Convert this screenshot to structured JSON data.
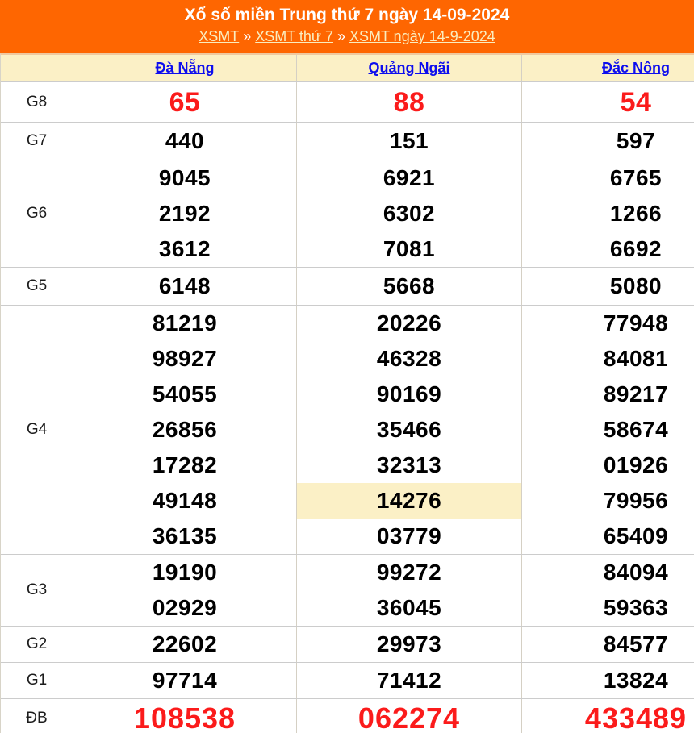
{
  "banner": {
    "title": "Xổ số miền Trung thứ 7 ngày 14-09-2024",
    "breadcrumb": {
      "separator": "»",
      "items": [
        {
          "label": "XSMT"
        },
        {
          "label": "XSMT thứ 7"
        },
        {
          "label": "XSMT ngày 14-9-2024"
        }
      ]
    }
  },
  "colors": {
    "banner_bg": "#FE6601",
    "header_bg": "#FBF0C6",
    "highlight_bg": "#FBF0C6",
    "link_blue": "#0D0DEE",
    "number_red": "#FB1B1B",
    "border_gray": "#CCCCCC"
  },
  "table": {
    "columns": [
      "Đà Nẵng",
      "Quảng Ngãi",
      "Đắc Nông"
    ],
    "highlight": {
      "row_label": "G4",
      "column": "Quảng Ngãi",
      "value": "14276"
    },
    "rows": [
      {
        "label": "G8",
        "cells": [
          [
            "65"
          ],
          [
            "88"
          ],
          [
            "54"
          ]
        ]
      },
      {
        "label": "G7",
        "cells": [
          [
            "440"
          ],
          [
            "151"
          ],
          [
            "597"
          ]
        ]
      },
      {
        "label": "G6",
        "cells": [
          [
            "9045",
            "2192",
            "3612"
          ],
          [
            "6921",
            "6302",
            "7081"
          ],
          [
            "6765",
            "1266",
            "6692"
          ]
        ]
      },
      {
        "label": "G5",
        "cells": [
          [
            "6148"
          ],
          [
            "5668"
          ],
          [
            "5080"
          ]
        ]
      },
      {
        "label": "G4",
        "cells": [
          [
            "81219",
            "98927",
            "54055",
            "26856",
            "17282",
            "49148",
            "36135"
          ],
          [
            "20226",
            "46328",
            "90169",
            "35466",
            "32313",
            "14276",
            "03779"
          ],
          [
            "77948",
            "84081",
            "89217",
            "58674",
            "01926",
            "79956",
            "65409"
          ]
        ]
      },
      {
        "label": "G3",
        "cells": [
          [
            "19190",
            "02929"
          ],
          [
            "99272",
            "36045"
          ],
          [
            "84094",
            "59363"
          ]
        ]
      },
      {
        "label": "G2",
        "cells": [
          [
            "22602"
          ],
          [
            "29973"
          ],
          [
            "84577"
          ]
        ]
      },
      {
        "label": "G1",
        "cells": [
          [
            "97714"
          ],
          [
            "71412"
          ],
          [
            "13824"
          ]
        ]
      },
      {
        "label": "ĐB",
        "cells": [
          [
            "108538"
          ],
          [
            "062274"
          ],
          [
            "433489"
          ]
        ]
      }
    ]
  }
}
